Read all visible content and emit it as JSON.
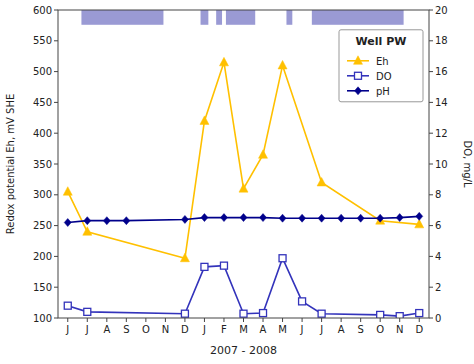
{
  "chart_data": {
    "type": "line",
    "title": "Well PW",
    "x_label": "2007 - 2008",
    "y_label": "Redox potential Eh, mV SHE",
    "y2_label": "DO, mg/L",
    "xlim": [
      -0.5,
      18.5
    ],
    "xticks": [
      {
        "value": 0,
        "label": "J"
      },
      {
        "value": 1,
        "label": "J"
      },
      {
        "value": 2,
        "label": "A"
      },
      {
        "value": 3,
        "label": "S"
      },
      {
        "value": 4,
        "label": "O"
      },
      {
        "value": 5,
        "label": "N"
      },
      {
        "value": 6,
        "label": "D"
      },
      {
        "value": 7,
        "label": "J"
      },
      {
        "value": 8,
        "label": "F"
      },
      {
        "value": 9,
        "label": "M"
      },
      {
        "value": 10,
        "label": "A"
      },
      {
        "value": 11,
        "label": "M"
      },
      {
        "value": 12,
        "label": "J"
      },
      {
        "value": 13,
        "label": "J"
      },
      {
        "value": 14,
        "label": "A"
      },
      {
        "value": 15,
        "label": "S"
      },
      {
        "value": 16,
        "label": "O"
      },
      {
        "value": 17,
        "label": "N"
      },
      {
        "value": 18,
        "label": "D"
      }
    ],
    "ylim": [
      100,
      600
    ],
    "yticks": [
      100,
      150,
      200,
      250,
      300,
      350,
      400,
      450,
      500,
      550,
      600
    ],
    "y2lim": [
      0,
      20
    ],
    "y2ticks": [
      0,
      2,
      4,
      6,
      8,
      10,
      12,
      14,
      16,
      18,
      20
    ],
    "grid": false,
    "legend": "upper right",
    "bands": {
      "color": "#8888CC",
      "y": [
        576,
        600
      ],
      "x": [
        [
          0.7,
          4.9
        ],
        [
          6.8,
          7.2
        ],
        [
          7.6,
          7.9
        ],
        [
          8.1,
          9.6
        ],
        [
          11.2,
          11.5
        ],
        [
          12.5,
          17.2
        ]
      ]
    },
    "series": [
      {
        "name": "Eh",
        "color": "#FFC000",
        "marker": "triangle",
        "x": [
          0,
          1,
          6,
          7,
          8,
          9,
          10,
          11,
          13,
          16,
          18
        ],
        "values": [
          305,
          240,
          197,
          420,
          515,
          310,
          365,
          510,
          320,
          258,
          252
        ]
      },
      {
        "name": "DO",
        "color": "#3333BB",
        "marker": "square",
        "x": [
          0,
          1,
          6,
          7,
          8,
          9,
          10,
          11,
          12,
          13,
          16,
          17,
          18
        ],
        "values": [
          120,
          110,
          107,
          183,
          185,
          107,
          108,
          197,
          127,
          107,
          105,
          103,
          108
        ]
      },
      {
        "name": "pH",
        "color": "#00008B",
        "marker": "diamond",
        "x": [
          0,
          1,
          2,
          3,
          6,
          7,
          8,
          9,
          10,
          11,
          12,
          13,
          14,
          15,
          16,
          17,
          18
        ],
        "values": [
          255,
          258,
          258,
          258,
          260,
          263,
          263,
          263,
          263,
          262,
          262,
          262,
          262,
          262,
          262,
          263,
          265
        ]
      }
    ]
  }
}
